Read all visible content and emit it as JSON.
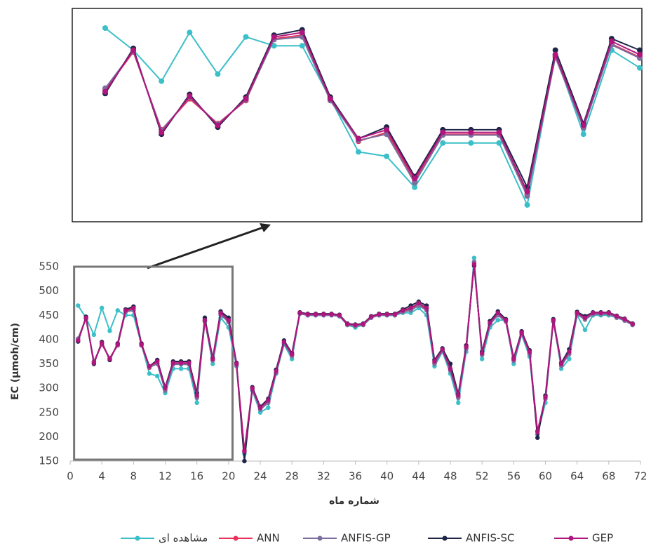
{
  "chart_data": {
    "type": "line",
    "x_label": "شماره ماه",
    "y_label": "EC (µmoh/cm)",
    "x": [
      1,
      2,
      3,
      4,
      5,
      6,
      7,
      8,
      9,
      10,
      11,
      12,
      13,
      14,
      15,
      16,
      17,
      18,
      19,
      20,
      21,
      22,
      23,
      24,
      25,
      26,
      27,
      28,
      29,
      30,
      31,
      32,
      33,
      34,
      35,
      36,
      37,
      38,
      39,
      40,
      41,
      42,
      43,
      44,
      45,
      46,
      47,
      48,
      49,
      50,
      51,
      52,
      53,
      54,
      55,
      56,
      57,
      58,
      59,
      60,
      61,
      62,
      63,
      64,
      65,
      66,
      67,
      68,
      69,
      70,
      71
    ],
    "xlim": [
      0,
      72
    ],
    "xticks": [
      0,
      4,
      8,
      12,
      16,
      20,
      24,
      28,
      32,
      36,
      40,
      44,
      48,
      52,
      56,
      60,
      64,
      68,
      72
    ],
    "ylim": [
      150,
      550
    ],
    "yticks": [
      150,
      200,
      250,
      300,
      350,
      400,
      450,
      500,
      550
    ],
    "zoom_xlim": [
      1,
      20
    ],
    "series": [
      {
        "name": "مشاهده ای",
        "color": "#3bbfc8",
        "values": [
          470,
          445,
          410,
          465,
          418,
          460,
          450,
          450,
          390,
          330,
          325,
          290,
          340,
          340,
          340,
          270,
          440,
          350,
          445,
          425,
          345,
          165,
          295,
          250,
          260,
          330,
          390,
          360,
          455,
          450,
          450,
          450,
          450,
          450,
          430,
          425,
          430,
          445,
          450,
          450,
          450,
          455,
          455,
          465,
          450,
          345,
          375,
          330,
          270,
          375,
          568,
          360,
          425,
          440,
          440,
          350,
          410,
          365,
          205,
          270,
          440,
          340,
          360,
          450,
          420,
          450,
          450,
          450,
          445,
          440,
          430
        ]
      },
      {
        "name": "ANN",
        "color": "#e8325a",
        "values": [
          400,
          443,
          355,
          390,
          362,
          388,
          458,
          462,
          390,
          342,
          352,
          297,
          350,
          350,
          350,
          282,
          438,
          358,
          452,
          437,
          348,
          172,
          298,
          258,
          272,
          333,
          393,
          368,
          454,
          451,
          451,
          451,
          451,
          449,
          431,
          429,
          431,
          446,
          451,
          451,
          451,
          458,
          462,
          472,
          462,
          352,
          378,
          338,
          282,
          383,
          558,
          370,
          433,
          452,
          438,
          358,
          413,
          372,
          212,
          280,
          438,
          348,
          372,
          453,
          443,
          453,
          453,
          453,
          446,
          440,
          431
        ]
      },
      {
        "name": "ANFIS-GP",
        "color": "#7a6e9e",
        "values": [
          402,
          444,
          354,
          392,
          361,
          389,
          457,
          460,
          388,
          343,
          350,
          295,
          349,
          349,
          349,
          280,
          437,
          357,
          451,
          436,
          347,
          168,
          296,
          256,
          270,
          331,
          392,
          366,
          453,
          450,
          450,
          450,
          450,
          448,
          430,
          428,
          430,
          445,
          450,
          450,
          450,
          457,
          460,
          470,
          460,
          350,
          377,
          336,
          280,
          381,
          560,
          368,
          431,
          450,
          437,
          356,
          412,
          370,
          205,
          278,
          437,
          346,
          370,
          452,
          441,
          452,
          452,
          452,
          445,
          439,
          430
        ]
      },
      {
        "name": "ANFIS-SC",
        "color": "#1f2547",
        "values": [
          396,
          447,
          350,
          395,
          358,
          392,
          462,
          468,
          392,
          345,
          358,
          302,
          355,
          355,
          355,
          290,
          445,
          362,
          458,
          445,
          352,
          150,
          302,
          262,
          278,
          338,
          398,
          372,
          456,
          453,
          453,
          453,
          453,
          451,
          433,
          431,
          433,
          448,
          453,
          453,
          453,
          462,
          470,
          478,
          470,
          358,
          382,
          350,
          288,
          388,
          552,
          375,
          438,
          458,
          442,
          362,
          417,
          378,
          198,
          285,
          442,
          352,
          380,
          457,
          448,
          456,
          456,
          456,
          449,
          443,
          433
        ]
      },
      {
        "name": "GEP",
        "color": "#b0157e",
        "values": [
          398,
          445,
          352,
          393,
          360,
          390,
          460,
          465,
          390,
          345,
          355,
          300,
          352,
          352,
          352,
          285,
          440,
          360,
          455,
          440,
          350,
          170,
          300,
          260,
          275,
          335,
          395,
          370,
          455,
          452,
          452,
          452,
          452,
          450,
          432,
          430,
          432,
          447,
          452,
          452,
          452,
          460,
          465,
          475,
          465,
          355,
          380,
          340,
          285,
          385,
          555,
          372,
          435,
          455,
          440,
          360,
          415,
          375,
          210,
          282,
          440,
          350,
          375,
          455,
          445,
          455,
          455,
          455,
          448,
          442,
          432
        ]
      }
    ]
  }
}
